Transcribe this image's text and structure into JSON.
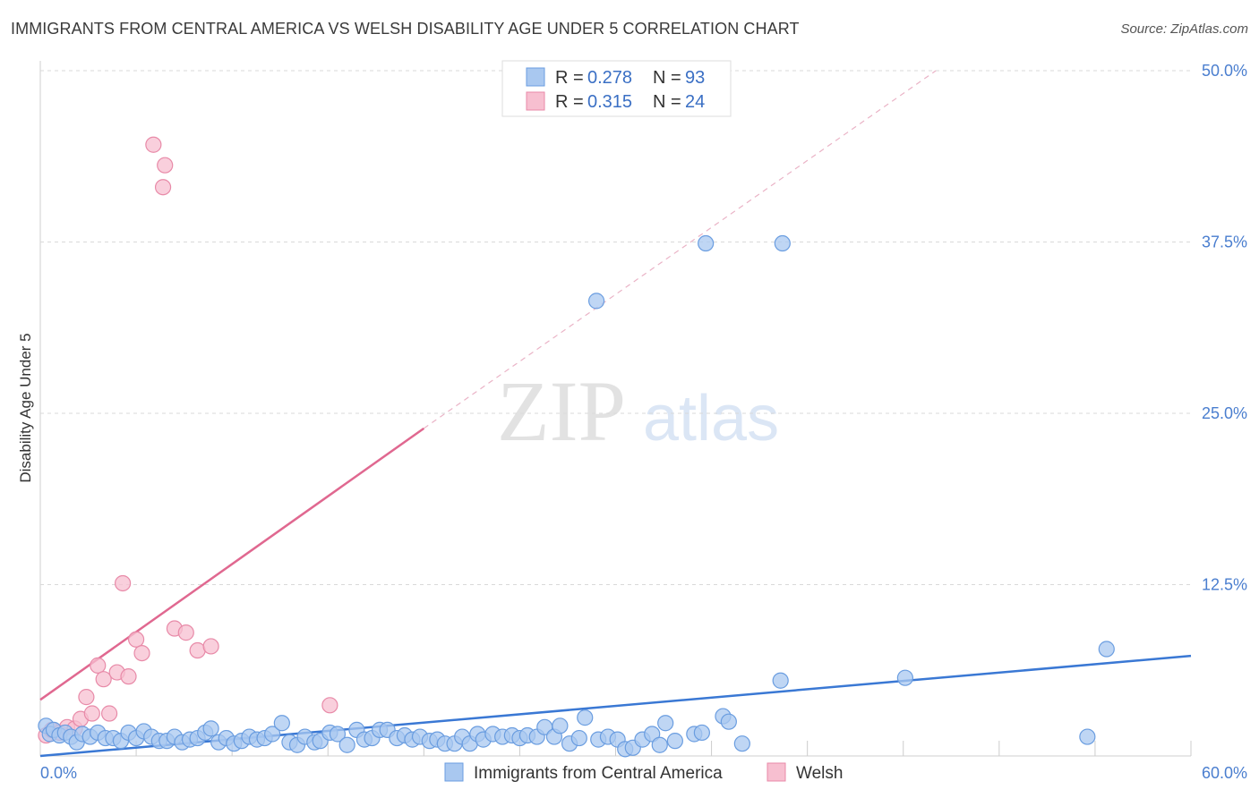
{
  "title": "IMMIGRANTS FROM CENTRAL AMERICA VS WELSH DISABILITY AGE UNDER 5 CORRELATION CHART",
  "source": "Source: ZipAtlas.com",
  "watermark": {
    "zip": "ZIP",
    "atlas": "atlas"
  },
  "colors": {
    "blue_fill": "#a9c8f0",
    "blue_stroke": "#6a9de0",
    "blue_line": "#3a78d4",
    "pink_fill": "#f7bfd0",
    "pink_stroke": "#e88aa8",
    "pink_line": "#e06890",
    "tick": "#4a7ecf",
    "grid": "#d9d9d9"
  },
  "chart_data": {
    "type": "scatter",
    "title": "IMMIGRANTS FROM CENTRAL AMERICA VS WELSH DISABILITY AGE UNDER 5 CORRELATION CHART",
    "xlabel": "",
    "ylabel": "Disability Age Under 5",
    "xlim": [
      0,
      60
    ],
    "ylim": [
      0,
      50
    ],
    "x_tick_labels": [
      "0.0%",
      "60.0%"
    ],
    "y_ticks": [
      12.5,
      25.0,
      37.5,
      50.0
    ],
    "y_tick_labels": [
      "12.5%",
      "25.0%",
      "37.5%",
      "50.0%"
    ],
    "grid": true,
    "legend": {
      "placement": "top-center",
      "entries": [
        {
          "r_label": "R =",
          "r_value": "0.278",
          "n_label": "N =",
          "n_value": "93"
        },
        {
          "r_label": "R =",
          "r_value": "0.315",
          "n_label": "N =",
          "n_value": "24"
        }
      ]
    },
    "series": [
      {
        "name": "Immigrants from Central America",
        "regression": {
          "x0": 0,
          "y0": 0.0,
          "x1": 60,
          "y1": 7.3
        },
        "points": [
          [
            0.3,
            2.2
          ],
          [
            0.5,
            1.6
          ],
          [
            0.7,
            1.9
          ],
          [
            1.0,
            1.5
          ],
          [
            1.3,
            1.7
          ],
          [
            1.6,
            1.4
          ],
          [
            1.9,
            1.0
          ],
          [
            2.2,
            1.6
          ],
          [
            2.6,
            1.4
          ],
          [
            3.0,
            1.7
          ],
          [
            3.4,
            1.3
          ],
          [
            3.8,
            1.3
          ],
          [
            4.2,
            1.1
          ],
          [
            4.6,
            1.7
          ],
          [
            5.0,
            1.3
          ],
          [
            5.4,
            1.8
          ],
          [
            5.8,
            1.4
          ],
          [
            6.2,
            1.1
          ],
          [
            6.6,
            1.1
          ],
          [
            7.0,
            1.4
          ],
          [
            7.4,
            1.0
          ],
          [
            7.8,
            1.2
          ],
          [
            8.2,
            1.3
          ],
          [
            8.6,
            1.7
          ],
          [
            8.9,
            2.0
          ],
          [
            9.3,
            1.0
          ],
          [
            9.7,
            1.3
          ],
          [
            10.1,
            0.9
          ],
          [
            10.5,
            1.1
          ],
          [
            10.9,
            1.4
          ],
          [
            11.3,
            1.2
          ],
          [
            11.7,
            1.3
          ],
          [
            12.1,
            1.6
          ],
          [
            12.6,
            2.4
          ],
          [
            13.0,
            1.0
          ],
          [
            13.4,
            0.8
          ],
          [
            13.8,
            1.4
          ],
          [
            14.3,
            1.0
          ],
          [
            14.6,
            1.1
          ],
          [
            15.1,
            1.7
          ],
          [
            15.5,
            1.6
          ],
          [
            16.0,
            0.8
          ],
          [
            16.5,
            1.9
          ],
          [
            16.9,
            1.2
          ],
          [
            17.3,
            1.3
          ],
          [
            17.7,
            1.9
          ],
          [
            18.1,
            1.9
          ],
          [
            18.6,
            1.3
          ],
          [
            19.0,
            1.5
          ],
          [
            19.4,
            1.2
          ],
          [
            19.8,
            1.4
          ],
          [
            20.3,
            1.1
          ],
          [
            20.7,
            1.2
          ],
          [
            21.1,
            0.9
          ],
          [
            21.6,
            0.9
          ],
          [
            22.0,
            1.4
          ],
          [
            22.4,
            0.9
          ],
          [
            22.8,
            1.6
          ],
          [
            23.1,
            1.2
          ],
          [
            23.6,
            1.6
          ],
          [
            24.1,
            1.4
          ],
          [
            24.6,
            1.5
          ],
          [
            25.0,
            1.3
          ],
          [
            25.4,
            1.5
          ],
          [
            25.9,
            1.4
          ],
          [
            26.3,
            2.1
          ],
          [
            26.8,
            1.4
          ],
          [
            27.1,
            2.2
          ],
          [
            27.6,
            0.9
          ],
          [
            28.1,
            1.3
          ],
          [
            28.4,
            2.8
          ],
          [
            29.1,
            1.2
          ],
          [
            29.6,
            1.4
          ],
          [
            30.1,
            1.2
          ],
          [
            30.5,
            0.5
          ],
          [
            30.9,
            0.6
          ],
          [
            31.4,
            1.2
          ],
          [
            31.9,
            1.6
          ],
          [
            32.3,
            0.8
          ],
          [
            32.6,
            2.4
          ],
          [
            33.1,
            1.1
          ],
          [
            34.1,
            1.6
          ],
          [
            34.5,
            1.7
          ],
          [
            35.6,
            2.9
          ],
          [
            35.9,
            2.5
          ],
          [
            36.6,
            0.9
          ],
          [
            29.0,
            33.2
          ],
          [
            34.7,
            37.4
          ],
          [
            38.7,
            37.4
          ],
          [
            38.6,
            5.5
          ],
          [
            45.1,
            5.7
          ],
          [
            54.6,
            1.4
          ],
          [
            55.6,
            7.8
          ]
        ]
      },
      {
        "name": "Welsh",
        "regression": {
          "x0": 0,
          "y0": 4.1,
          "x1": 20,
          "y1": 23.9,
          "dash_x1": 46.7,
          "dash_y1": 50.0
        },
        "points": [
          [
            0.3,
            1.5
          ],
          [
            0.6,
            1.9
          ],
          [
            1.0,
            1.7
          ],
          [
            1.4,
            2.1
          ],
          [
            1.8,
            2.0
          ],
          [
            2.1,
            2.7
          ],
          [
            2.4,
            4.3
          ],
          [
            2.7,
            3.1
          ],
          [
            3.0,
            6.6
          ],
          [
            3.3,
            5.6
          ],
          [
            3.6,
            3.1
          ],
          [
            4.0,
            6.1
          ],
          [
            4.3,
            12.6
          ],
          [
            4.6,
            5.8
          ],
          [
            5.0,
            8.5
          ],
          [
            5.3,
            7.5
          ],
          [
            5.9,
            44.6
          ],
          [
            6.5,
            43.1
          ],
          [
            6.4,
            41.5
          ],
          [
            7.0,
            9.3
          ],
          [
            7.6,
            9.0
          ],
          [
            8.2,
            7.7
          ],
          [
            8.9,
            8.0
          ],
          [
            15.1,
            3.7
          ]
        ]
      }
    ]
  }
}
